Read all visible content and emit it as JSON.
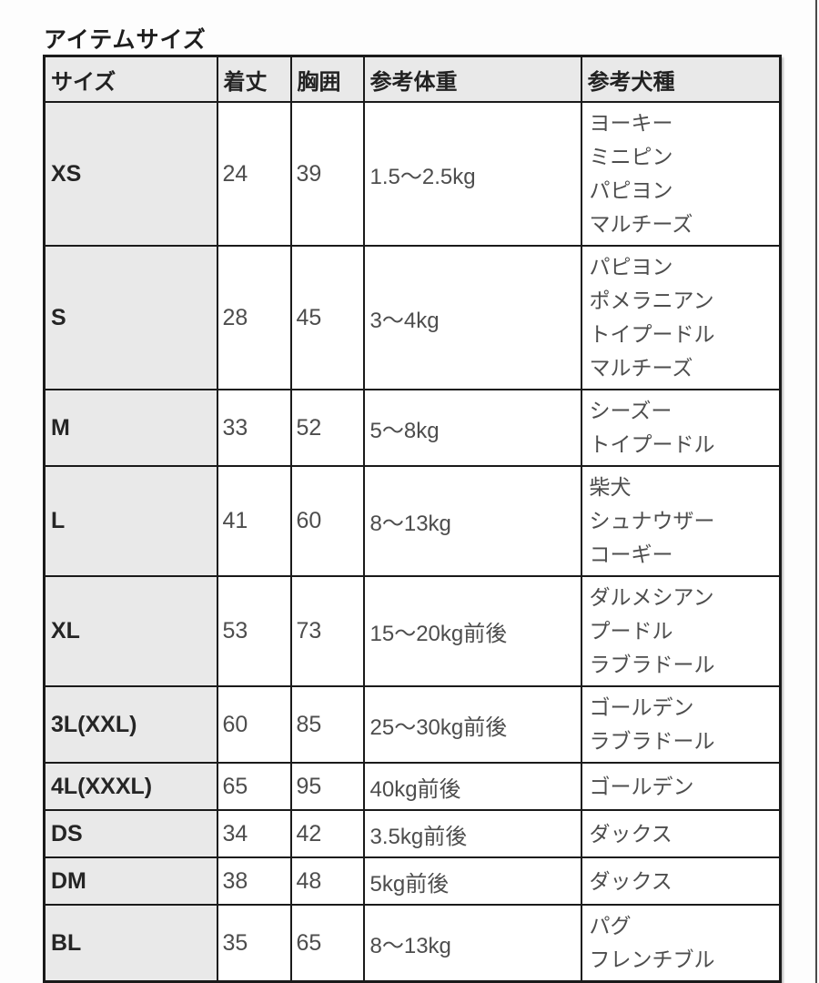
{
  "page": {
    "title": "アイテムサイズ"
  },
  "colors": {
    "header_bg": "#e9e9e9",
    "size_col_bg": "#e9e9e9",
    "border": "#1a1a1a",
    "title_text": "#1e1e1e",
    "cell_text": "#4d4d4d",
    "background": "#fdfdfd"
  },
  "table": {
    "headers": [
      "サイズ",
      "着丈",
      "胸囲",
      "参考体重",
      "参考犬種"
    ],
    "rows": [
      {
        "size": "XS",
        "length": "24",
        "chest": "39",
        "weight": "1.5〜2.5kg",
        "breeds": [
          "ヨーキー",
          "ミニピン",
          "パピヨン",
          "マルチーズ"
        ]
      },
      {
        "size": "S",
        "length": "28",
        "chest": "45",
        "weight": "3〜4kg",
        "breeds": [
          "パピヨン",
          "ポメラニアン",
          "トイプードル",
          "マルチーズ"
        ]
      },
      {
        "size": "M",
        "length": "33",
        "chest": "52",
        "weight": "5〜8kg",
        "breeds": [
          "シーズー",
          "トイプードル"
        ]
      },
      {
        "size": "L",
        "length": "41",
        "chest": "60",
        "weight": "8〜13kg",
        "breeds": [
          "柴犬",
          "シュナウザー",
          "コーギー"
        ]
      },
      {
        "size": "XL",
        "length": "53",
        "chest": "73",
        "weight": "15〜20kg前後",
        "breeds": [
          "ダルメシアン",
          "プードル",
          "ラブラドール"
        ]
      },
      {
        "size": "3L(XXL)",
        "length": "60",
        "chest": "85",
        "weight": "25〜30kg前後",
        "breeds": [
          "ゴールデン",
          "ラブラドール"
        ]
      },
      {
        "size": "4L(XXXL)",
        "length": "65",
        "chest": "95",
        "weight": "40kg前後",
        "breeds": [
          "ゴールデン"
        ]
      },
      {
        "size": "DS",
        "length": "34",
        "chest": "42",
        "weight": "3.5kg前後",
        "breeds": [
          "ダックス"
        ]
      },
      {
        "size": "DM",
        "length": "38",
        "chest": "48",
        "weight": "5kg前後",
        "breeds": [
          "ダックス"
        ]
      },
      {
        "size": "BL",
        "length": "35",
        "chest": "65",
        "weight": "8〜13kg",
        "breeds": [
          "パグ",
          "フレンチブル"
        ]
      }
    ]
  }
}
